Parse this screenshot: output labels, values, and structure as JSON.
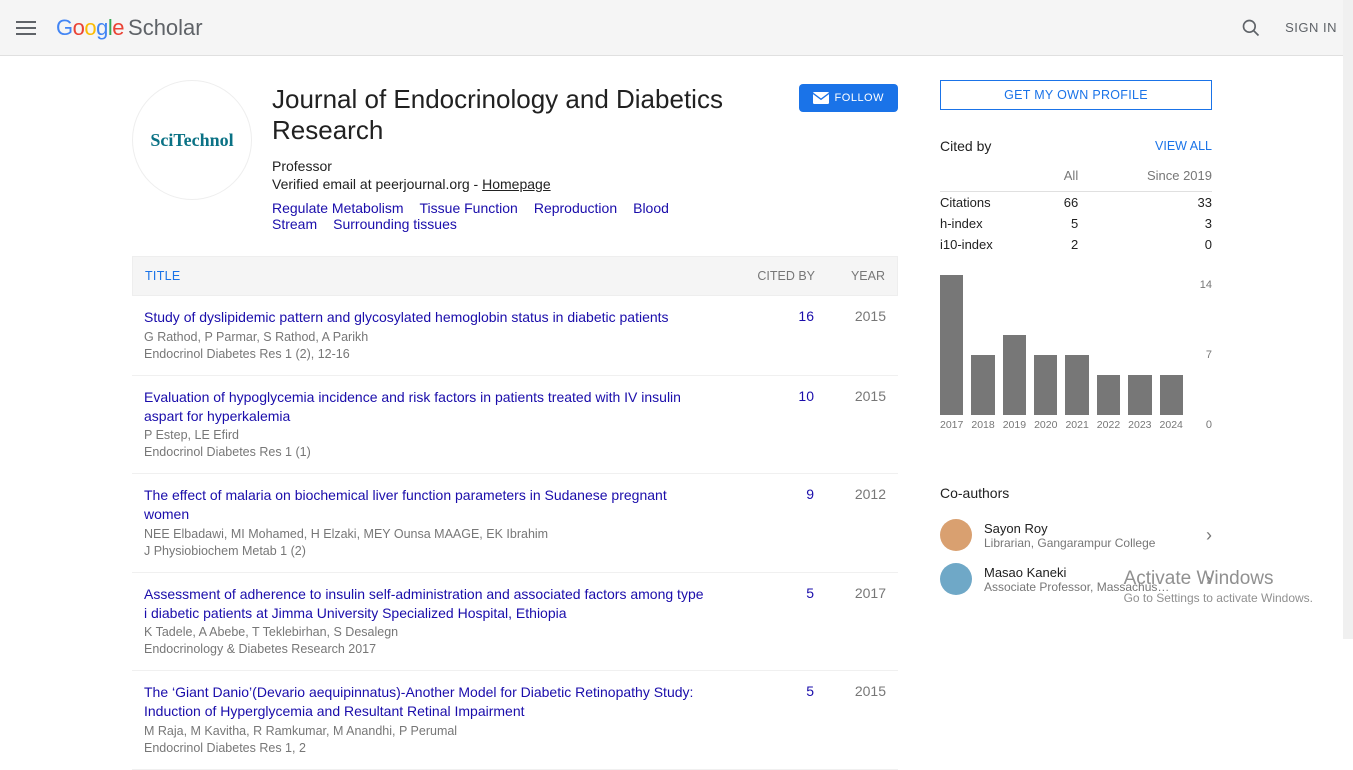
{
  "header": {
    "sign_in": "SIGN IN"
  },
  "profile": {
    "name": "Journal of Endocrinology and Diabetics Research",
    "role": "Professor",
    "verified_prefix": "Verified email at peerjournal.org - ",
    "homepage_label": "Homepage",
    "avatar_text": "SciTechnol",
    "follow_label": "FOLLOW",
    "interests": [
      "Regulate Metabolism",
      "Tissue Function",
      "Reproduction",
      "Blood Stream",
      "Surrounding tissues"
    ]
  },
  "articles": {
    "columns": {
      "title": "TITLE",
      "cited_by": "CITED BY",
      "year": "YEAR"
    },
    "rows": [
      {
        "title": "Study of dyslipidemic pattern and glycosylated hemoglobin status in diabetic patients",
        "authors": "G Rathod, P Parmar, S Rathod, A Parikh",
        "venue": "Endocrinol Diabetes Res 1 (2), 12-16",
        "cited": "16",
        "year": "2015"
      },
      {
        "title": "Evaluation of hypoglycemia incidence and risk factors in patients treated with IV insulin aspart for hyperkalemia",
        "authors": "P Estep, LE Efird",
        "venue": "Endocrinol Diabetes Res 1 (1)",
        "cited": "10",
        "year": "2015"
      },
      {
        "title": "The effect of malaria on biochemical liver function parameters in Sudanese pregnant women",
        "authors": "NEE Elbadawi, MI Mohamed, H Elzaki, MEY Ounsa MAAGE, EK Ibrahim",
        "venue": "J Physiobiochem Metab 1 (2)",
        "cited": "9",
        "year": "2012"
      },
      {
        "title": "Assessment of adherence to insulin self-administration and associated factors among type i diabetic patients at Jimma University Specialized Hospital, Ethiopia",
        "authors": "K Tadele, A Abebe, T Teklebirhan, S Desalegn",
        "venue": "Endocrinology & Diabetes Research 2017",
        "cited": "5",
        "year": "2017"
      },
      {
        "title": "The ‘Giant Danio’(Devario aequipinnatus)-Another Model for Diabetic Retinopathy Study: Induction of Hyperglycemia and Resultant Retinal Impairment",
        "authors": "M Raja, M Kavitha, R Ramkumar, M Anandhi, P Perumal",
        "venue": "Endocrinol Diabetes Res 1, 2",
        "cited": "5",
        "year": "2015"
      }
    ]
  },
  "sidebar": {
    "own_profile": "GET MY OWN PROFILE",
    "cited_by_label": "Cited by",
    "view_all": "VIEW ALL",
    "stats": {
      "columns": [
        "",
        "All",
        "Since 2019"
      ],
      "rows": [
        {
          "label": "Citations",
          "all": "66",
          "since": "33"
        },
        {
          "label": "h-index",
          "all": "5",
          "since": "3"
        },
        {
          "label": "i10-index",
          "all": "2",
          "since": "0"
        }
      ]
    },
    "chart": {
      "type": "bar",
      "ymax": 14,
      "yticks": [
        "14",
        "7",
        "0"
      ],
      "bar_color": "#777777",
      "background_color": "#ffffff",
      "label_fontsize": 10.5,
      "label_color": "#777777",
      "bars": [
        {
          "year": "2017",
          "value": 14
        },
        {
          "year": "2018",
          "value": 6
        },
        {
          "year": "2019",
          "value": 8
        },
        {
          "year": "2020",
          "value": 6
        },
        {
          "year": "2021",
          "value": 6
        },
        {
          "year": "2022",
          "value": 4
        },
        {
          "year": "2023",
          "value": 4
        },
        {
          "year": "2024",
          "value": 4
        }
      ]
    },
    "coauthors_label": "Co-authors",
    "coauthors": [
      {
        "name": "Sayon Roy",
        "aff": "Librarian, Gangarampur College",
        "avatar_bg": "#d9a070"
      },
      {
        "name": "Masao Kaneki",
        "aff": "Associate Professor, Massachus…",
        "avatar_bg": "#6fa8c7"
      }
    ]
  },
  "watermark": {
    "line1": "Activate Windows",
    "line2": "Go to Settings to activate Windows."
  }
}
